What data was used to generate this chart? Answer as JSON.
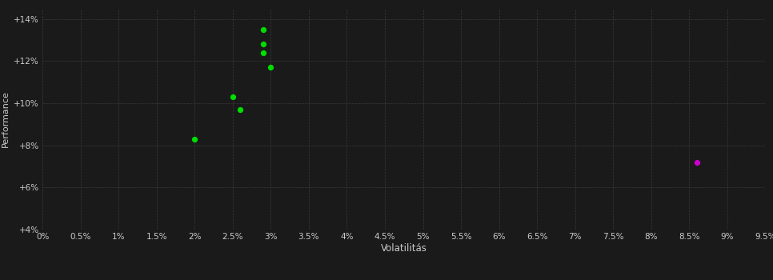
{
  "background_color": "#1a1a1a",
  "grid_color": "#3a3a3a",
  "text_color": "#cccccc",
  "xlabel": "Volatilitás",
  "ylabel": "Performance",
  "xlim": [
    0.0,
    0.095
  ],
  "ylim": [
    0.04,
    0.145
  ],
  "xticks": [
    0.0,
    0.005,
    0.01,
    0.015,
    0.02,
    0.025,
    0.03,
    0.035,
    0.04,
    0.045,
    0.05,
    0.055,
    0.06,
    0.065,
    0.07,
    0.075,
    0.08,
    0.085,
    0.09,
    0.095
  ],
  "yticks": [
    0.04,
    0.06,
    0.08,
    0.1,
    0.12,
    0.14
  ],
  "green_points": [
    [
      0.02,
      0.083
    ],
    [
      0.025,
      0.103
    ],
    [
      0.026,
      0.097
    ],
    [
      0.029,
      0.135
    ],
    [
      0.029,
      0.128
    ],
    [
      0.029,
      0.124
    ],
    [
      0.03,
      0.117
    ]
  ],
  "magenta_points": [
    [
      0.086,
      0.072
    ]
  ],
  "point_size": 18,
  "green_color": "#00dd00",
  "magenta_color": "#cc00cc",
  "tick_fontsize": 7.5,
  "label_fontsize": 8.5,
  "ylabel_fontsize": 8,
  "figsize": [
    9.66,
    3.5
  ],
  "dpi": 100
}
